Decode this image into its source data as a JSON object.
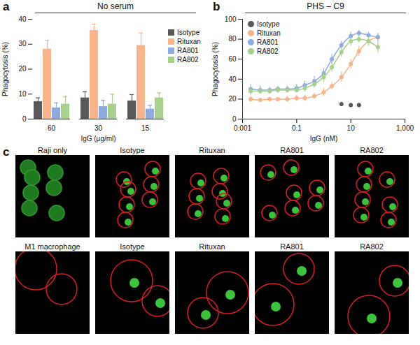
{
  "chart_data": [
    {
      "panel": "a",
      "type": "bar",
      "title": "No serum",
      "x_label": "IgG (μg/ml)",
      "y_label": "Phagocytosis (%)",
      "categories": [
        "60",
        "30",
        "15"
      ],
      "series": [
        {
          "name": "Isotype",
          "color": "#595959",
          "values": [
            7,
            8.5,
            7.3
          ],
          "errors": [
            1.5,
            2.5,
            2.5
          ]
        },
        {
          "name": "Rituxan",
          "color": "#f7b48a",
          "values": [
            28,
            35.5,
            29.5
          ],
          "errors": [
            3.5,
            2.5,
            5
          ]
        },
        {
          "name": "RA801",
          "color": "#8eaadf",
          "values": [
            4.5,
            5,
            4
          ],
          "errors": [
            2,
            2.5,
            1.5
          ]
        },
        {
          "name": "RA802",
          "color": "#a6d08c",
          "values": [
            6,
            6,
            8.5
          ],
          "errors": [
            3,
            4,
            2
          ]
        }
      ],
      "ylim": [
        0,
        40
      ],
      "yticks": [
        0,
        10,
        20,
        30,
        40
      ],
      "legend": "right"
    },
    {
      "panel": "b",
      "type": "line",
      "title": "PHS – C9",
      "x_label": "IgG (nM)",
      "y_label": "Phagocytosis (%)",
      "x": [
        0.002,
        0.0045,
        0.01,
        0.02,
        0.045,
        0.1,
        0.2,
        0.45,
        1,
        2,
        4.5,
        10,
        20,
        45,
        100
      ],
      "log": "x",
      "xlim": [
        0.001,
        1000
      ],
      "xticks": [
        0.001,
        0.1,
        10,
        {
          "value": 1000,
          "label": "1,000"
        }
      ],
      "ylim": [
        0,
        100
      ],
      "yticks": [
        0,
        20,
        40,
        60,
        80,
        100
      ],
      "marker": "circle",
      "legend": "top-left",
      "series": [
        {
          "name": "Isotype",
          "type": "scatter",
          "color": "#595959",
          "values": [
            null,
            null,
            null,
            null,
            null,
            null,
            null,
            null,
            null,
            null,
            15,
            14,
            14,
            null,
            null
          ],
          "errors": [
            null,
            null,
            null,
            null,
            null,
            null,
            null,
            null,
            null,
            null,
            2,
            2,
            2,
            null,
            null
          ]
        },
        {
          "name": "Rituxan",
          "color": "#f7b48a",
          "values": [
            20,
            19,
            20,
            20,
            20,
            21,
            21,
            23,
            27,
            33,
            42,
            55,
            68,
            78,
            82
          ],
          "errors": [
            3,
            2,
            2,
            2,
            3,
            3,
            3,
            3,
            4,
            4,
            5,
            5,
            5,
            4,
            3
          ]
        },
        {
          "name": "RA801",
          "color": "#8eaadf",
          "values": [
            30,
            29,
            29,
            30,
            30,
            31,
            34,
            38,
            46,
            60,
            74,
            83,
            86,
            84,
            82
          ],
          "errors": [
            5,
            4,
            3,
            3,
            3,
            4,
            4,
            5,
            5,
            5,
            4,
            4,
            3,
            3,
            4
          ]
        },
        {
          "name": "RA802",
          "color": "#a6d08c",
          "values": [
            28,
            28,
            28,
            29,
            29,
            29,
            31,
            35,
            42,
            52,
            67,
            78,
            80,
            78,
            72
          ],
          "errors": [
            4,
            3,
            3,
            3,
            3,
            3,
            4,
            4,
            5,
            5,
            5,
            5,
            4,
            5,
            6
          ]
        }
      ]
    }
  ],
  "image_panel": {
    "panel": "c",
    "rows": [
      [
        "Raji only",
        "Isotype",
        "Rituxan",
        "RA801",
        "RA802"
      ],
      [
        "M1 macrophage",
        "Isotype",
        "Rituxan",
        "RA801",
        "RA802"
      ]
    ]
  }
}
